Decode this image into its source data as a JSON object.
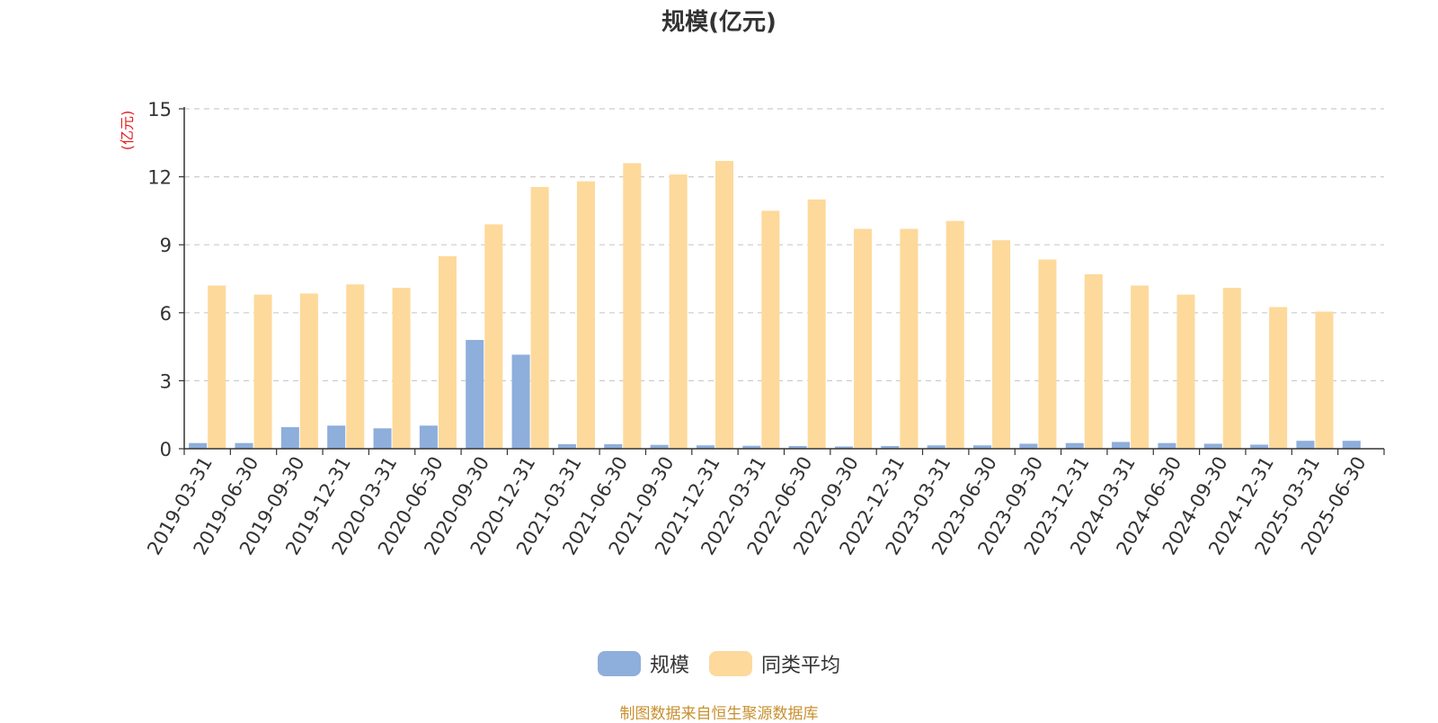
{
  "chart_data": {
    "type": "bar",
    "title": "规模(亿元)",
    "ylabel": "(亿元)",
    "xlabel": "",
    "ylim": [
      0,
      15
    ],
    "yticks": [
      0,
      3,
      6,
      9,
      12,
      15
    ],
    "grid": true,
    "legend_position": "bottom-center",
    "categories": [
      "2019-03-31",
      "2019-06-30",
      "2019-09-30",
      "2019-12-31",
      "2020-03-31",
      "2020-06-30",
      "2020-09-30",
      "2020-12-31",
      "2021-03-31",
      "2021-06-30",
      "2021-09-30",
      "2021-12-31",
      "2022-03-31",
      "2022-06-30",
      "2022-09-30",
      "2022-12-31",
      "2023-03-31",
      "2023-06-30",
      "2023-09-30",
      "2023-12-31",
      "2024-03-31",
      "2024-06-30",
      "2024-09-30",
      "2024-12-31",
      "2025-03-31",
      "2025-06-30"
    ],
    "series": [
      {
        "name": "规模",
        "color": "#8eaedb",
        "values": [
          0.25,
          0.25,
          0.95,
          1.02,
          0.9,
          1.02,
          4.8,
          4.15,
          0.2,
          0.2,
          0.17,
          0.15,
          0.13,
          0.12,
          0.1,
          0.12,
          0.15,
          0.15,
          0.22,
          0.25,
          0.3,
          0.25,
          0.22,
          0.18,
          0.35,
          0.35
        ]
      },
      {
        "name": "同类平均",
        "color": "#fdd99b",
        "values": [
          7.2,
          6.8,
          6.85,
          7.25,
          7.1,
          8.5,
          9.9,
          11.55,
          11.8,
          12.6,
          12.1,
          12.7,
          10.5,
          11.0,
          9.7,
          9.7,
          10.05,
          9.2,
          8.35,
          7.7,
          7.2,
          6.8,
          7.1,
          6.25,
          6.05,
          null
        ]
      }
    ]
  },
  "footer": {
    "source": "制图数据来自恒生聚源数据库"
  }
}
